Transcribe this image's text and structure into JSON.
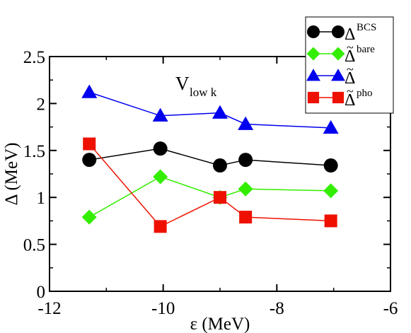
{
  "chart_data": {
    "type": "line",
    "xlabel": "ε (MeV)",
    "ylabel": "Δ (MeV)",
    "xlim": [
      -12,
      -6
    ],
    "ylim": [
      0,
      2.5
    ],
    "x_ticks": [
      "-12",
      "-10",
      "-8",
      "-6"
    ],
    "y_ticks": [
      "0",
      "0.5",
      "1",
      "1.5",
      "2",
      "2.5"
    ],
    "annotation": {
      "main": "V",
      "sub": "low k"
    },
    "legend_position": "top-right",
    "series": [
      {
        "name_main": "Δ",
        "name_sup": "BCS",
        "tilde": false,
        "marker": "circle",
        "color": "#000000",
        "x": [
          -11.3,
          -10.05,
          -9.0,
          -8.55,
          -7.05
        ],
        "y": [
          1.4,
          1.52,
          1.34,
          1.4,
          1.34
        ]
      },
      {
        "name_main": "Δ",
        "name_sup": "bare",
        "tilde": true,
        "marker": "diamond",
        "color": "#33ee00",
        "x": [
          -11.3,
          -10.05,
          -9.0,
          -8.55,
          -7.05
        ],
        "y": [
          0.79,
          1.22,
          1.0,
          1.09,
          1.07
        ]
      },
      {
        "name_main": "Δ",
        "name_sup": "",
        "tilde": true,
        "marker": "triangle",
        "color": "#0000ee",
        "x": [
          -11.3,
          -10.05,
          -9.0,
          -8.55,
          -7.05
        ],
        "y": [
          2.12,
          1.87,
          1.9,
          1.78,
          1.74
        ]
      },
      {
        "name_main": "Δ",
        "name_sup": "pho",
        "tilde": true,
        "marker": "square",
        "color": "#ee1100",
        "x": [
          -11.3,
          -10.05,
          -9.0,
          -8.55,
          -7.05
        ],
        "y": [
          1.57,
          0.69,
          1.0,
          0.79,
          0.75
        ]
      }
    ]
  }
}
